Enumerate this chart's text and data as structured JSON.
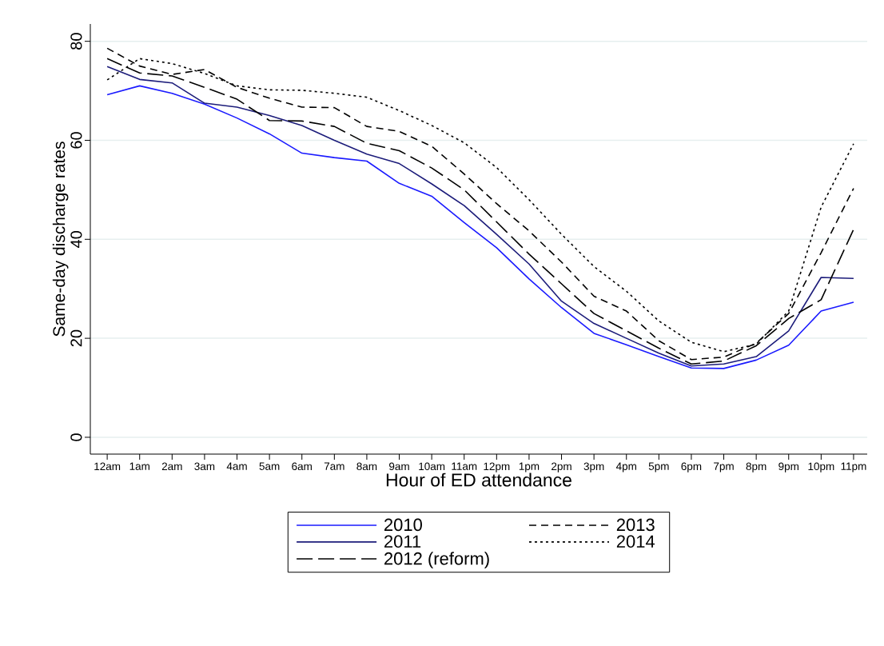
{
  "chart_data": {
    "type": "line",
    "xlabel": "Hour of ED attendance",
    "ylabel": "Same-day discharge rates",
    "categories": [
      "12am",
      "1am",
      "2am",
      "3am",
      "4am",
      "5am",
      "6am",
      "7am",
      "8am",
      "9am",
      "10am",
      "11am",
      "12pm",
      "1pm",
      "2pm",
      "3pm",
      "4pm",
      "5pm",
      "6pm",
      "7pm",
      "8pm",
      "9pm",
      "10pm",
      "11pm"
    ],
    "series": [
      {
        "name": "2010",
        "color": "#1a1aff",
        "line_style": "solid",
        "values": [
          69.2,
          71,
          69.5,
          67.3,
          64.5,
          61.3,
          57.4,
          56.5,
          55.8,
          51.3,
          48.7,
          43.4,
          38.3,
          32,
          26.2,
          21,
          18.7,
          16.3,
          14,
          13.9,
          15.6,
          18.6,
          25.5,
          27.3
        ]
      },
      {
        "name": "2011",
        "color": "#1c1c7a",
        "line_style": "solid",
        "values": [
          74.9,
          72.3,
          71.6,
          67.5,
          66.7,
          65,
          63,
          60,
          57.2,
          55.3,
          51.2,
          46.8,
          41,
          35,
          27.5,
          23,
          20,
          17,
          14.4,
          14.8,
          16.3,
          21.5,
          32.3,
          32.1
        ]
      },
      {
        "name": "2012 (reform)",
        "color": "#000000",
        "line_style": "longdash",
        "values": [
          76.5,
          73.6,
          73,
          70.7,
          68.3,
          64,
          63.9,
          62.8,
          59.4,
          57.9,
          54.4,
          50,
          43.5,
          37,
          31,
          25,
          21.5,
          18,
          14.8,
          15.4,
          18.5,
          24,
          27.8,
          42
        ]
      },
      {
        "name": "2013",
        "color": "#000000",
        "line_style": "dashed",
        "values": [
          78.6,
          75,
          73.3,
          74.3,
          70.7,
          68.5,
          66.7,
          66.6,
          62.8,
          61.8,
          58.8,
          53.2,
          47.2,
          41.7,
          35.4,
          28.5,
          25.5,
          19.5,
          15.7,
          16.2,
          19,
          25,
          37.3,
          50.3
        ]
      },
      {
        "name": "2014",
        "color": "#000000",
        "line_style": "dotted",
        "values": [
          72.2,
          76.5,
          75.5,
          73.5,
          71,
          70.2,
          70.1,
          69.5,
          68.7,
          66,
          63,
          59.5,
          54.5,
          48,
          41,
          34.5,
          29.5,
          23.5,
          19.2,
          17.3,
          18.8,
          25.5,
          46.5,
          59.3
        ]
      }
    ],
    "ylim": [
      -3.4,
      83.5
    ],
    "yticks": [
      0,
      20,
      40,
      60,
      80
    ],
    "grid": "y",
    "legend": "bottom",
    "marker": "none"
  }
}
